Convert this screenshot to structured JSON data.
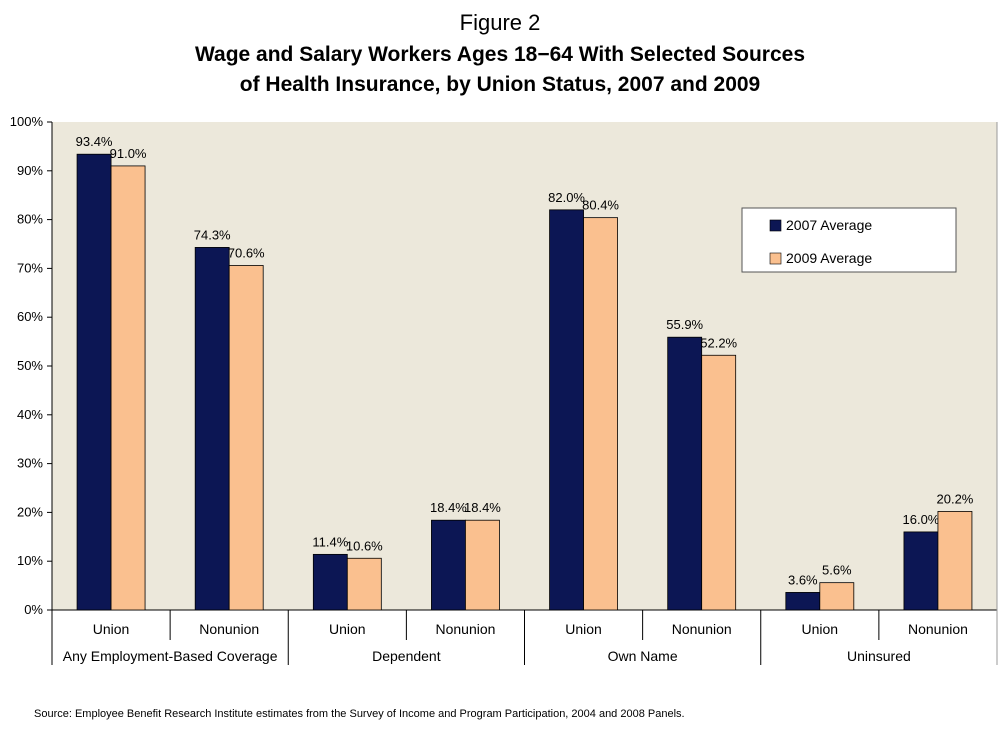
{
  "figure_label": "Figure 2",
  "title_line1": "Wage and Salary Workers Ages 18−64 With Selected Sources",
  "title_line2": "of Health Insurance, by Union Status, 2007 and 2009",
  "source": "Source: Employee Benefit Research Institute estimates from the Survey of Income and Program Participation,  2004 and 2008 Panels.",
  "colors": {
    "plot_bg": "#ECE8DB",
    "series_2007": "#0C1654",
    "series_2009": "#FAC08F",
    "outline": "#000000"
  },
  "chart_data": {
    "type": "bar",
    "groups": [
      {
        "label": "Any Employment-Based Coverage",
        "categories": [
          "Union",
          "Nonunion"
        ]
      },
      {
        "label": "Dependent",
        "categories": [
          "Union",
          "Nonunion"
        ]
      },
      {
        "label": "Own Name",
        "categories": [
          "Union",
          "Nonunion"
        ]
      },
      {
        "label": "Uninsured",
        "categories": [
          "Union",
          "Nonunion"
        ]
      }
    ],
    "categories": [
      "Union",
      "Nonunion",
      "Union",
      "Nonunion",
      "Union",
      "Nonunion",
      "Union",
      "Nonunion"
    ],
    "series": [
      {
        "name": "2007 Average",
        "values": [
          93.4,
          74.3,
          11.4,
          18.4,
          82.0,
          55.9,
          3.6,
          16.0
        ],
        "labels": [
          "93.4%",
          "74.3%",
          "11.4%",
          "18.4%",
          "82.0%",
          "55.9%",
          "3.6%",
          "16.0%"
        ]
      },
      {
        "name": "2009 Average",
        "values": [
          91.0,
          70.6,
          10.6,
          18.4,
          80.4,
          52.2,
          5.6,
          20.2
        ],
        "labels": [
          "91.0%",
          "70.6%",
          "10.6%",
          "18.4%",
          "80.4%",
          "52.2%",
          "5.6%",
          "20.2%"
        ]
      }
    ],
    "yticks": [
      "0%",
      "10%",
      "20%",
      "30%",
      "40%",
      "50%",
      "60%",
      "70%",
      "80%",
      "90%",
      "100%"
    ],
    "ylim": [
      0,
      100
    ],
    "grid": false,
    "legend_position": "right"
  }
}
